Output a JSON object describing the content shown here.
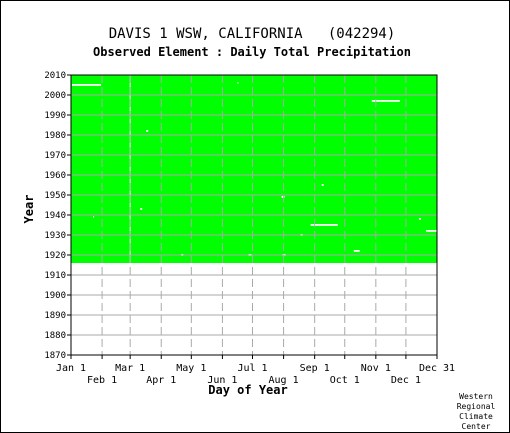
{
  "chart_data": {
    "type": "heatmap",
    "title": "DAVIS 1 WSW, CALIFORNIA   (042294)",
    "subtitle": "Observed Element : Daily Total Precipitation",
    "xlabel": "Day of Year",
    "ylabel": "Year",
    "xlim": [
      0,
      365
    ],
    "ylim": [
      1870,
      2010
    ],
    "y_ticks": [
      2010,
      2000,
      1990,
      1980,
      1970,
      1960,
      1950,
      1940,
      1930,
      1920,
      1910,
      1900,
      1890,
      1880,
      1870
    ],
    "x_ticks_top": [
      {
        "label": "Jan 1",
        "day": 0
      },
      {
        "label": "Mar 1",
        "day": 59
      },
      {
        "label": "May 1",
        "day": 120
      },
      {
        "label": "Jul 1",
        "day": 181
      },
      {
        "label": "Sep 1",
        "day": 243
      },
      {
        "label": "Nov 1",
        "day": 304
      },
      {
        "label": "Dec 31",
        "day": 365
      }
    ],
    "x_ticks_bottom": [
      {
        "label": "Feb 1",
        "day": 31
      },
      {
        "label": "Apr 1",
        "day": 90
      },
      {
        "label": "Jun 1",
        "day": 151
      },
      {
        "label": "Aug 1",
        "day": 212
      },
      {
        "label": "Oct 1",
        "day": 273
      },
      {
        "label": "Dec 1",
        "day": 334
      }
    ],
    "grid": true,
    "data_color": "#00ff00",
    "grid_color": "#aaaaaa",
    "record_years": [
      1916,
      2010
    ],
    "missing_segments": [
      {
        "year": 2005,
        "day_start": 1,
        "day_end": 30
      },
      {
        "year": 1997,
        "day_start": 300,
        "day_end": 328
      },
      {
        "year": 1935,
        "day_start": 239,
        "day_end": 266
      },
      {
        "year": 1932,
        "day_start": 354,
        "day_end": 365
      },
      {
        "year": 1922,
        "day_start": 282,
        "day_end": 288
      },
      {
        "year": 1920,
        "day_start": 177,
        "day_end": 180
      },
      {
        "year": 1920,
        "day_start": 110,
        "day_end": 112
      },
      {
        "year": 1920,
        "day_start": 211,
        "day_end": 214
      },
      {
        "year": 1949,
        "day_start": 210,
        "day_end": 213
      },
      {
        "year": 1943,
        "day_start": 69,
        "day_end": 71
      },
      {
        "year": 1930,
        "day_start": 229,
        "day_end": 231
      },
      {
        "year": 1938,
        "day_start": 347,
        "day_end": 349
      },
      {
        "year": 1939,
        "day_start": 22,
        "day_end": 23
      },
      {
        "year": 1955,
        "day_start": 250,
        "day_end": 252
      },
      {
        "year": 2006,
        "day_start": 166,
        "day_end": 167
      },
      {
        "year": 1982,
        "day_start": 75,
        "day_end": 77
      }
    ],
    "missing_day_columns": [
      59
    ]
  },
  "credit": [
    "Western",
    "Regional",
    "Climate",
    "Center"
  ]
}
